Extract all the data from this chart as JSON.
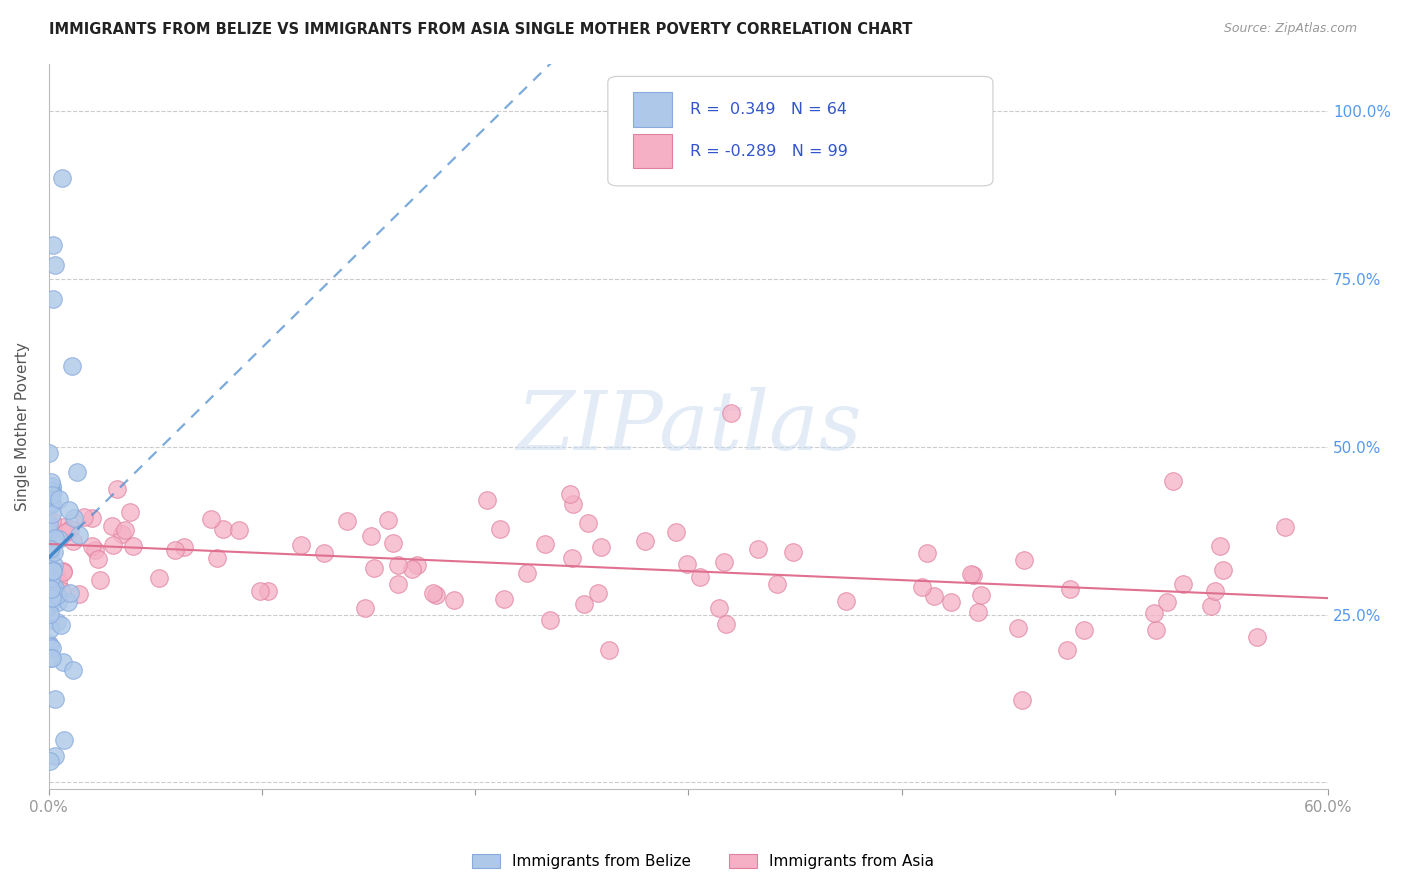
{
  "title": "IMMIGRANTS FROM BELIZE VS IMMIGRANTS FROM ASIA SINGLE MOTHER POVERTY CORRELATION CHART",
  "source": "Source: ZipAtlas.com",
  "ylabel": "Single Mother Poverty",
  "xlim": [
    0,
    0.6
  ],
  "ylim": [
    -0.01,
    1.07
  ],
  "belize_color": "#adc8e8",
  "belize_edge": "#88aadd",
  "asia_color": "#f5b0c5",
  "asia_edge": "#e080a0",
  "belize_R": 0.349,
  "belize_N": 64,
  "asia_R": -0.289,
  "asia_N": 99,
  "trend_blue": "#4488cc",
  "trend_pink": "#e07090",
  "legend_text_color": "#3355cc",
  "watermark_color": "#ccddf0",
  "right_tick_color": "#5599ee"
}
